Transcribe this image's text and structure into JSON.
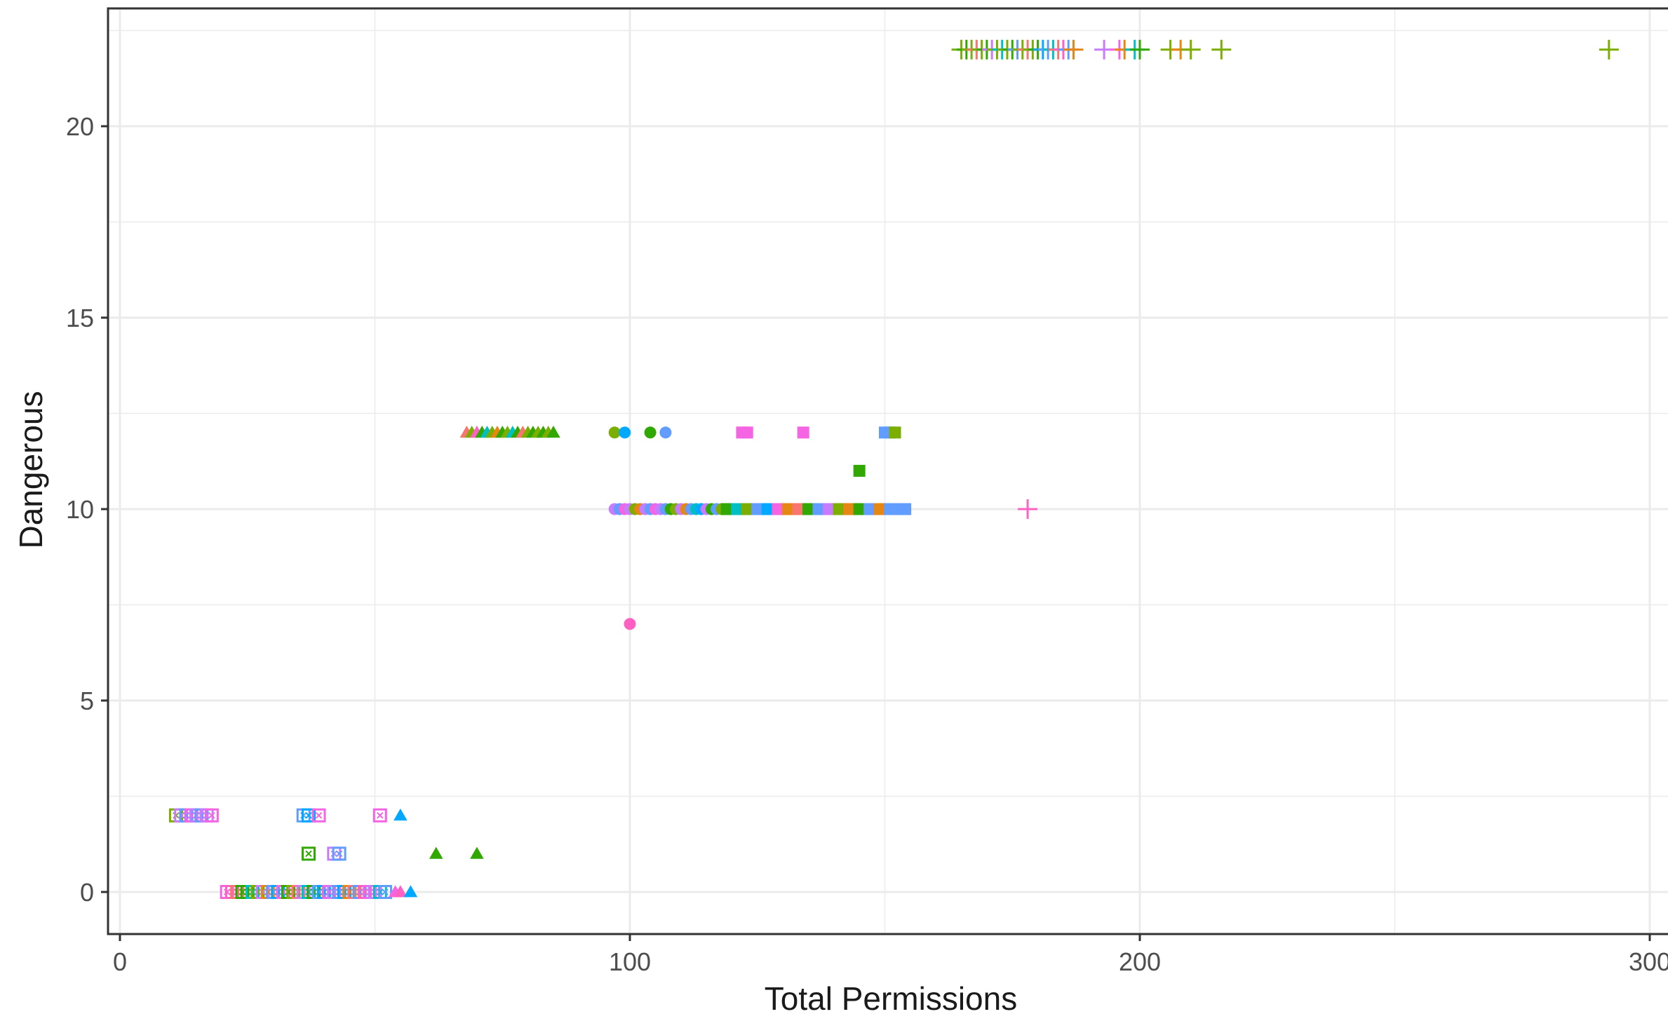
{
  "chart_data": {
    "type": "scatter",
    "xlabel": "Total Permissions",
    "ylabel": "Dangerous",
    "xlim": [
      -3,
      303
    ],
    "ylim": [
      -1.15,
      22.9
    ],
    "x_ticks": [
      {
        "value": 0,
        "label": "0"
      },
      {
        "value": 100,
        "label": "100"
      },
      {
        "value": 200,
        "label": "200"
      },
      {
        "value": 300,
        "label": "300"
      }
    ],
    "y_ticks": [
      {
        "value": 0,
        "label": "0"
      },
      {
        "value": 5,
        "label": "5"
      },
      {
        "value": 10,
        "label": "10"
      },
      {
        "value": 15,
        "label": "15"
      },
      {
        "value": 20,
        "label": "20"
      }
    ],
    "grid": true,
    "legend": "none",
    "colors": {
      "panel_border": "#333333",
      "grid": "#ebebeb",
      "green": "#31a800",
      "olive": "#7cae00",
      "teal": "#00bfc4",
      "blue": "#00a9ff",
      "periwinkle": "#619cff",
      "violet": "#c77cff",
      "magenta": "#f564e3",
      "pink": "#ff61c3",
      "rose": "#f8766d",
      "orange": "#e68613"
    },
    "series": [
      {
        "shape": "boxx",
        "points": [
          {
            "x": 11,
            "y": 2,
            "color": "olive"
          },
          {
            "x": 12,
            "y": 2,
            "color": "violet"
          },
          {
            "x": 13,
            "y": 2,
            "color": "periwinkle"
          },
          {
            "x": 14,
            "y": 2,
            "color": "magenta"
          },
          {
            "x": 15,
            "y": 2,
            "color": "violet"
          },
          {
            "x": 16,
            "y": 2,
            "color": "periwinkle"
          },
          {
            "x": 17,
            "y": 2,
            "color": "violet"
          },
          {
            "x": 18,
            "y": 2,
            "color": "magenta"
          },
          {
            "x": 36,
            "y": 2,
            "color": "periwinkle"
          },
          {
            "x": 37,
            "y": 2,
            "color": "blue"
          },
          {
            "x": 39,
            "y": 2,
            "color": "magenta"
          },
          {
            "x": 51,
            "y": 2,
            "color": "magenta"
          },
          {
            "x": 37,
            "y": 1,
            "color": "green"
          },
          {
            "x": 42,
            "y": 1,
            "color": "violet"
          },
          {
            "x": 43,
            "y": 1,
            "color": "periwinkle"
          },
          {
            "x": 21,
            "y": 0,
            "color": "magenta"
          },
          {
            "x": 22,
            "y": 0,
            "color": "pink"
          },
          {
            "x": 23,
            "y": 0,
            "color": "rose"
          },
          {
            "x": 24,
            "y": 0,
            "color": "green"
          },
          {
            "x": 25,
            "y": 0,
            "color": "green"
          },
          {
            "x": 26,
            "y": 0,
            "color": "teal"
          },
          {
            "x": 27,
            "y": 0,
            "color": "olive"
          },
          {
            "x": 28,
            "y": 0,
            "color": "violet"
          },
          {
            "x": 29,
            "y": 0,
            "color": "orange"
          },
          {
            "x": 30,
            "y": 0,
            "color": "periwinkle"
          },
          {
            "x": 31,
            "y": 0,
            "color": "blue"
          },
          {
            "x": 32,
            "y": 0,
            "color": "magenta"
          },
          {
            "x": 33,
            "y": 0,
            "color": "green"
          },
          {
            "x": 34,
            "y": 0,
            "color": "olive"
          },
          {
            "x": 35,
            "y": 0,
            "color": "rose"
          },
          {
            "x": 36,
            "y": 0,
            "color": "violet"
          },
          {
            "x": 37,
            "y": 0,
            "color": "teal"
          },
          {
            "x": 38,
            "y": 0,
            "color": "green"
          },
          {
            "x": 39,
            "y": 0,
            "color": "periwinkle"
          },
          {
            "x": 40,
            "y": 0,
            "color": "blue"
          },
          {
            "x": 41,
            "y": 0,
            "color": "magenta"
          },
          {
            "x": 42,
            "y": 0,
            "color": "violet"
          },
          {
            "x": 43,
            "y": 0,
            "color": "periwinkle"
          },
          {
            "x": 44,
            "y": 0,
            "color": "blue"
          },
          {
            "x": 45,
            "y": 0,
            "color": "orange"
          },
          {
            "x": 46,
            "y": 0,
            "color": "rose"
          },
          {
            "x": 47,
            "y": 0,
            "color": "periwinkle"
          },
          {
            "x": 48,
            "y": 0,
            "color": "pink"
          },
          {
            "x": 49,
            "y": 0,
            "color": "magenta"
          },
          {
            "x": 50,
            "y": 0,
            "color": "violet"
          },
          {
            "x": 51,
            "y": 0,
            "color": "teal"
          },
          {
            "x": 52,
            "y": 0,
            "color": "periwinkle"
          }
        ]
      },
      {
        "shape": "triangle",
        "points": [
          {
            "x": 55,
            "y": 2,
            "color": "blue"
          },
          {
            "x": 62,
            "y": 1,
            "color": "green"
          },
          {
            "x": 70,
            "y": 1,
            "color": "green"
          },
          {
            "x": 54,
            "y": 0,
            "color": "magenta"
          },
          {
            "x": 55,
            "y": 0,
            "color": "pink"
          },
          {
            "x": 57,
            "y": 0,
            "color": "blue"
          },
          {
            "x": 68,
            "y": 12,
            "color": "rose"
          },
          {
            "x": 69,
            "y": 12,
            "color": "olive"
          },
          {
            "x": 70,
            "y": 12,
            "color": "pink"
          },
          {
            "x": 71,
            "y": 12,
            "color": "green"
          },
          {
            "x": 72,
            "y": 12,
            "color": "teal"
          },
          {
            "x": 73,
            "y": 12,
            "color": "olive"
          },
          {
            "x": 74,
            "y": 12,
            "color": "orange"
          },
          {
            "x": 75,
            "y": 12,
            "color": "green"
          },
          {
            "x": 76,
            "y": 12,
            "color": "olive"
          },
          {
            "x": 77,
            "y": 12,
            "color": "teal"
          },
          {
            "x": 78,
            "y": 12,
            "color": "green"
          },
          {
            "x": 79,
            "y": 12,
            "color": "rose"
          },
          {
            "x": 80,
            "y": 12,
            "color": "olive"
          },
          {
            "x": 81,
            "y": 12,
            "color": "green"
          },
          {
            "x": 82,
            "y": 12,
            "color": "olive"
          },
          {
            "x": 83,
            "y": 12,
            "color": "green"
          },
          {
            "x": 84,
            "y": 12,
            "color": "olive"
          },
          {
            "x": 85,
            "y": 12,
            "color": "green"
          }
        ]
      },
      {
        "shape": "circle",
        "points": [
          {
            "x": 100,
            "y": 7,
            "color": "pink"
          },
          {
            "x": 97,
            "y": 12,
            "color": "olive"
          },
          {
            "x": 99,
            "y": 12,
            "color": "blue"
          },
          {
            "x": 104,
            "y": 12,
            "color": "green"
          },
          {
            "x": 107,
            "y": 12,
            "color": "periwinkle"
          },
          {
            "x": 97,
            "y": 10,
            "color": "violet"
          },
          {
            "x": 98,
            "y": 10,
            "color": "periwinkle"
          },
          {
            "x": 99,
            "y": 10,
            "color": "magenta"
          },
          {
            "x": 100,
            "y": 10,
            "color": "violet"
          },
          {
            "x": 101,
            "y": 10,
            "color": "olive"
          },
          {
            "x": 102,
            "y": 10,
            "color": "orange"
          },
          {
            "x": 103,
            "y": 10,
            "color": "violet"
          },
          {
            "x": 104,
            "y": 10,
            "color": "periwinkle"
          },
          {
            "x": 105,
            "y": 10,
            "color": "magenta"
          },
          {
            "x": 106,
            "y": 10,
            "color": "violet"
          },
          {
            "x": 107,
            "y": 10,
            "color": "periwinkle"
          },
          {
            "x": 108,
            "y": 10,
            "color": "green"
          },
          {
            "x": 109,
            "y": 10,
            "color": "olive"
          },
          {
            "x": 110,
            "y": 10,
            "color": "violet"
          },
          {
            "x": 111,
            "y": 10,
            "color": "orange"
          },
          {
            "x": 112,
            "y": 10,
            "color": "periwinkle"
          },
          {
            "x": 113,
            "y": 10,
            "color": "teal"
          },
          {
            "x": 114,
            "y": 10,
            "color": "blue"
          },
          {
            "x": 115,
            "y": 10,
            "color": "violet"
          },
          {
            "x": 116,
            "y": 10,
            "color": "green"
          },
          {
            "x": 117,
            "y": 10,
            "color": "periwinkle"
          },
          {
            "x": 118,
            "y": 10,
            "color": "olive"
          }
        ]
      },
      {
        "shape": "square",
        "points": [
          {
            "x": 122,
            "y": 12,
            "color": "magenta"
          },
          {
            "x": 123,
            "y": 12,
            "color": "magenta"
          },
          {
            "x": 134,
            "y": 12,
            "color": "magenta"
          },
          {
            "x": 150,
            "y": 12,
            "color": "periwinkle"
          },
          {
            "x": 151,
            "y": 12,
            "color": "periwinkle"
          },
          {
            "x": 152,
            "y": 12,
            "color": "olive"
          },
          {
            "x": 145,
            "y": 11,
            "color": "green"
          },
          {
            "x": 119,
            "y": 10,
            "color": "green"
          },
          {
            "x": 121,
            "y": 10,
            "color": "teal"
          },
          {
            "x": 123,
            "y": 10,
            "color": "olive"
          },
          {
            "x": 125,
            "y": 10,
            "color": "periwinkle"
          },
          {
            "x": 127,
            "y": 10,
            "color": "blue"
          },
          {
            "x": 129,
            "y": 10,
            "color": "magenta"
          },
          {
            "x": 131,
            "y": 10,
            "color": "orange"
          },
          {
            "x": 133,
            "y": 10,
            "color": "rose"
          },
          {
            "x": 135,
            "y": 10,
            "color": "green"
          },
          {
            "x": 137,
            "y": 10,
            "color": "periwinkle"
          },
          {
            "x": 139,
            "y": 10,
            "color": "violet"
          },
          {
            "x": 141,
            "y": 10,
            "color": "olive"
          },
          {
            "x": 143,
            "y": 10,
            "color": "orange"
          },
          {
            "x": 145,
            "y": 10,
            "color": "green"
          },
          {
            "x": 147,
            "y": 10,
            "color": "periwinkle"
          },
          {
            "x": 149,
            "y": 10,
            "color": "orange"
          },
          {
            "x": 151,
            "y": 10,
            "color": "periwinkle"
          },
          {
            "x": 153,
            "y": 10,
            "color": "periwinkle"
          },
          {
            "x": 154,
            "y": 10,
            "color": "periwinkle"
          }
        ]
      },
      {
        "shape": "plus",
        "points": [
          {
            "x": 178,
            "y": 10,
            "color": "pink"
          },
          {
            "x": 165,
            "y": 22,
            "color": "olive"
          },
          {
            "x": 166,
            "y": 22,
            "color": "green"
          },
          {
            "x": 167,
            "y": 22,
            "color": "olive"
          },
          {
            "x": 168,
            "y": 22,
            "color": "rose"
          },
          {
            "x": 169,
            "y": 22,
            "color": "olive"
          },
          {
            "x": 170,
            "y": 22,
            "color": "green"
          },
          {
            "x": 171,
            "y": 22,
            "color": "violet"
          },
          {
            "x": 172,
            "y": 22,
            "color": "olive"
          },
          {
            "x": 173,
            "y": 22,
            "color": "teal"
          },
          {
            "x": 174,
            "y": 22,
            "color": "olive"
          },
          {
            "x": 175,
            "y": 22,
            "color": "green"
          },
          {
            "x": 176,
            "y": 22,
            "color": "periwinkle"
          },
          {
            "x": 177,
            "y": 22,
            "color": "olive"
          },
          {
            "x": 178,
            "y": 22,
            "color": "rose"
          },
          {
            "x": 179,
            "y": 22,
            "color": "olive"
          },
          {
            "x": 180,
            "y": 22,
            "color": "green"
          },
          {
            "x": 181,
            "y": 22,
            "color": "blue"
          },
          {
            "x": 182,
            "y": 22,
            "color": "periwinkle"
          },
          {
            "x": 183,
            "y": 22,
            "color": "teal"
          },
          {
            "x": 184,
            "y": 22,
            "color": "rose"
          },
          {
            "x": 185,
            "y": 22,
            "color": "pink"
          },
          {
            "x": 186,
            "y": 22,
            "color": "periwinkle"
          },
          {
            "x": 187,
            "y": 22,
            "color": "orange"
          },
          {
            "x": 193,
            "y": 22,
            "color": "violet"
          },
          {
            "x": 196,
            "y": 22,
            "color": "magenta"
          },
          {
            "x": 197,
            "y": 22,
            "color": "orange"
          },
          {
            "x": 199,
            "y": 22,
            "color": "teal"
          },
          {
            "x": 200,
            "y": 22,
            "color": "green"
          },
          {
            "x": 206,
            "y": 22,
            "color": "olive"
          },
          {
            "x": 208,
            "y": 22,
            "color": "orange"
          },
          {
            "x": 210,
            "y": 22,
            "color": "olive"
          },
          {
            "x": 216,
            "y": 22,
            "color": "olive"
          },
          {
            "x": 292,
            "y": 22,
            "color": "olive"
          }
        ]
      }
    ]
  }
}
